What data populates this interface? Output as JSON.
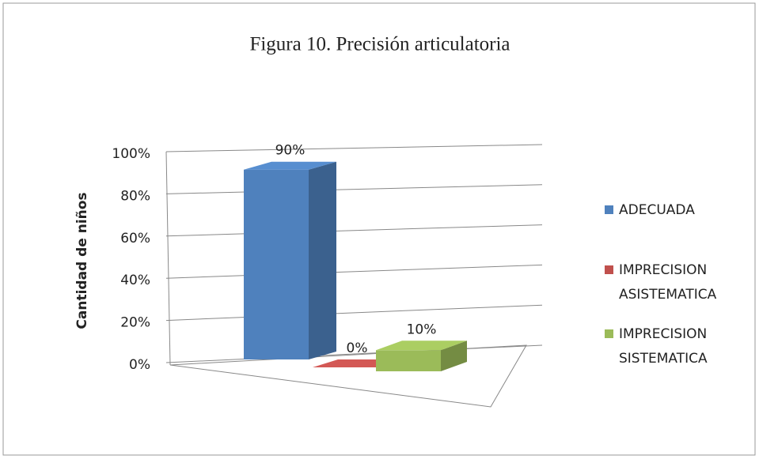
{
  "chart_data": {
    "type": "bar",
    "title": "Figura 10. Precisión articulatoria",
    "y_label": "Cantidad de niños",
    "categories": [
      null
    ],
    "series": [
      {
        "name": "ADECUADA",
        "color": "#4f81bd",
        "values": [
          90
        ],
        "value_labels": [
          "90%"
        ]
      },
      {
        "name": "IMPRECISION ASISTEMATICA",
        "color": "#c0504d",
        "values": [
          0
        ],
        "value_labels": [
          "0%"
        ]
      },
      {
        "name": "IMPRECISION SISTEMATICA",
        "color": "#9bbb59",
        "values": [
          10
        ],
        "value_labels": [
          "10%"
        ]
      }
    ],
    "ylim": [
      0,
      100
    ],
    "yticks": [
      {
        "value": 0,
        "label": "0%"
      },
      {
        "value": 20,
        "label": "20%"
      },
      {
        "value": 40,
        "label": "40%"
      },
      {
        "value": 60,
        "label": "60%"
      },
      {
        "value": 80,
        "label": "80%"
      },
      {
        "value": 100,
        "label": "100%"
      }
    ],
    "grid": true,
    "legend": "right"
  }
}
